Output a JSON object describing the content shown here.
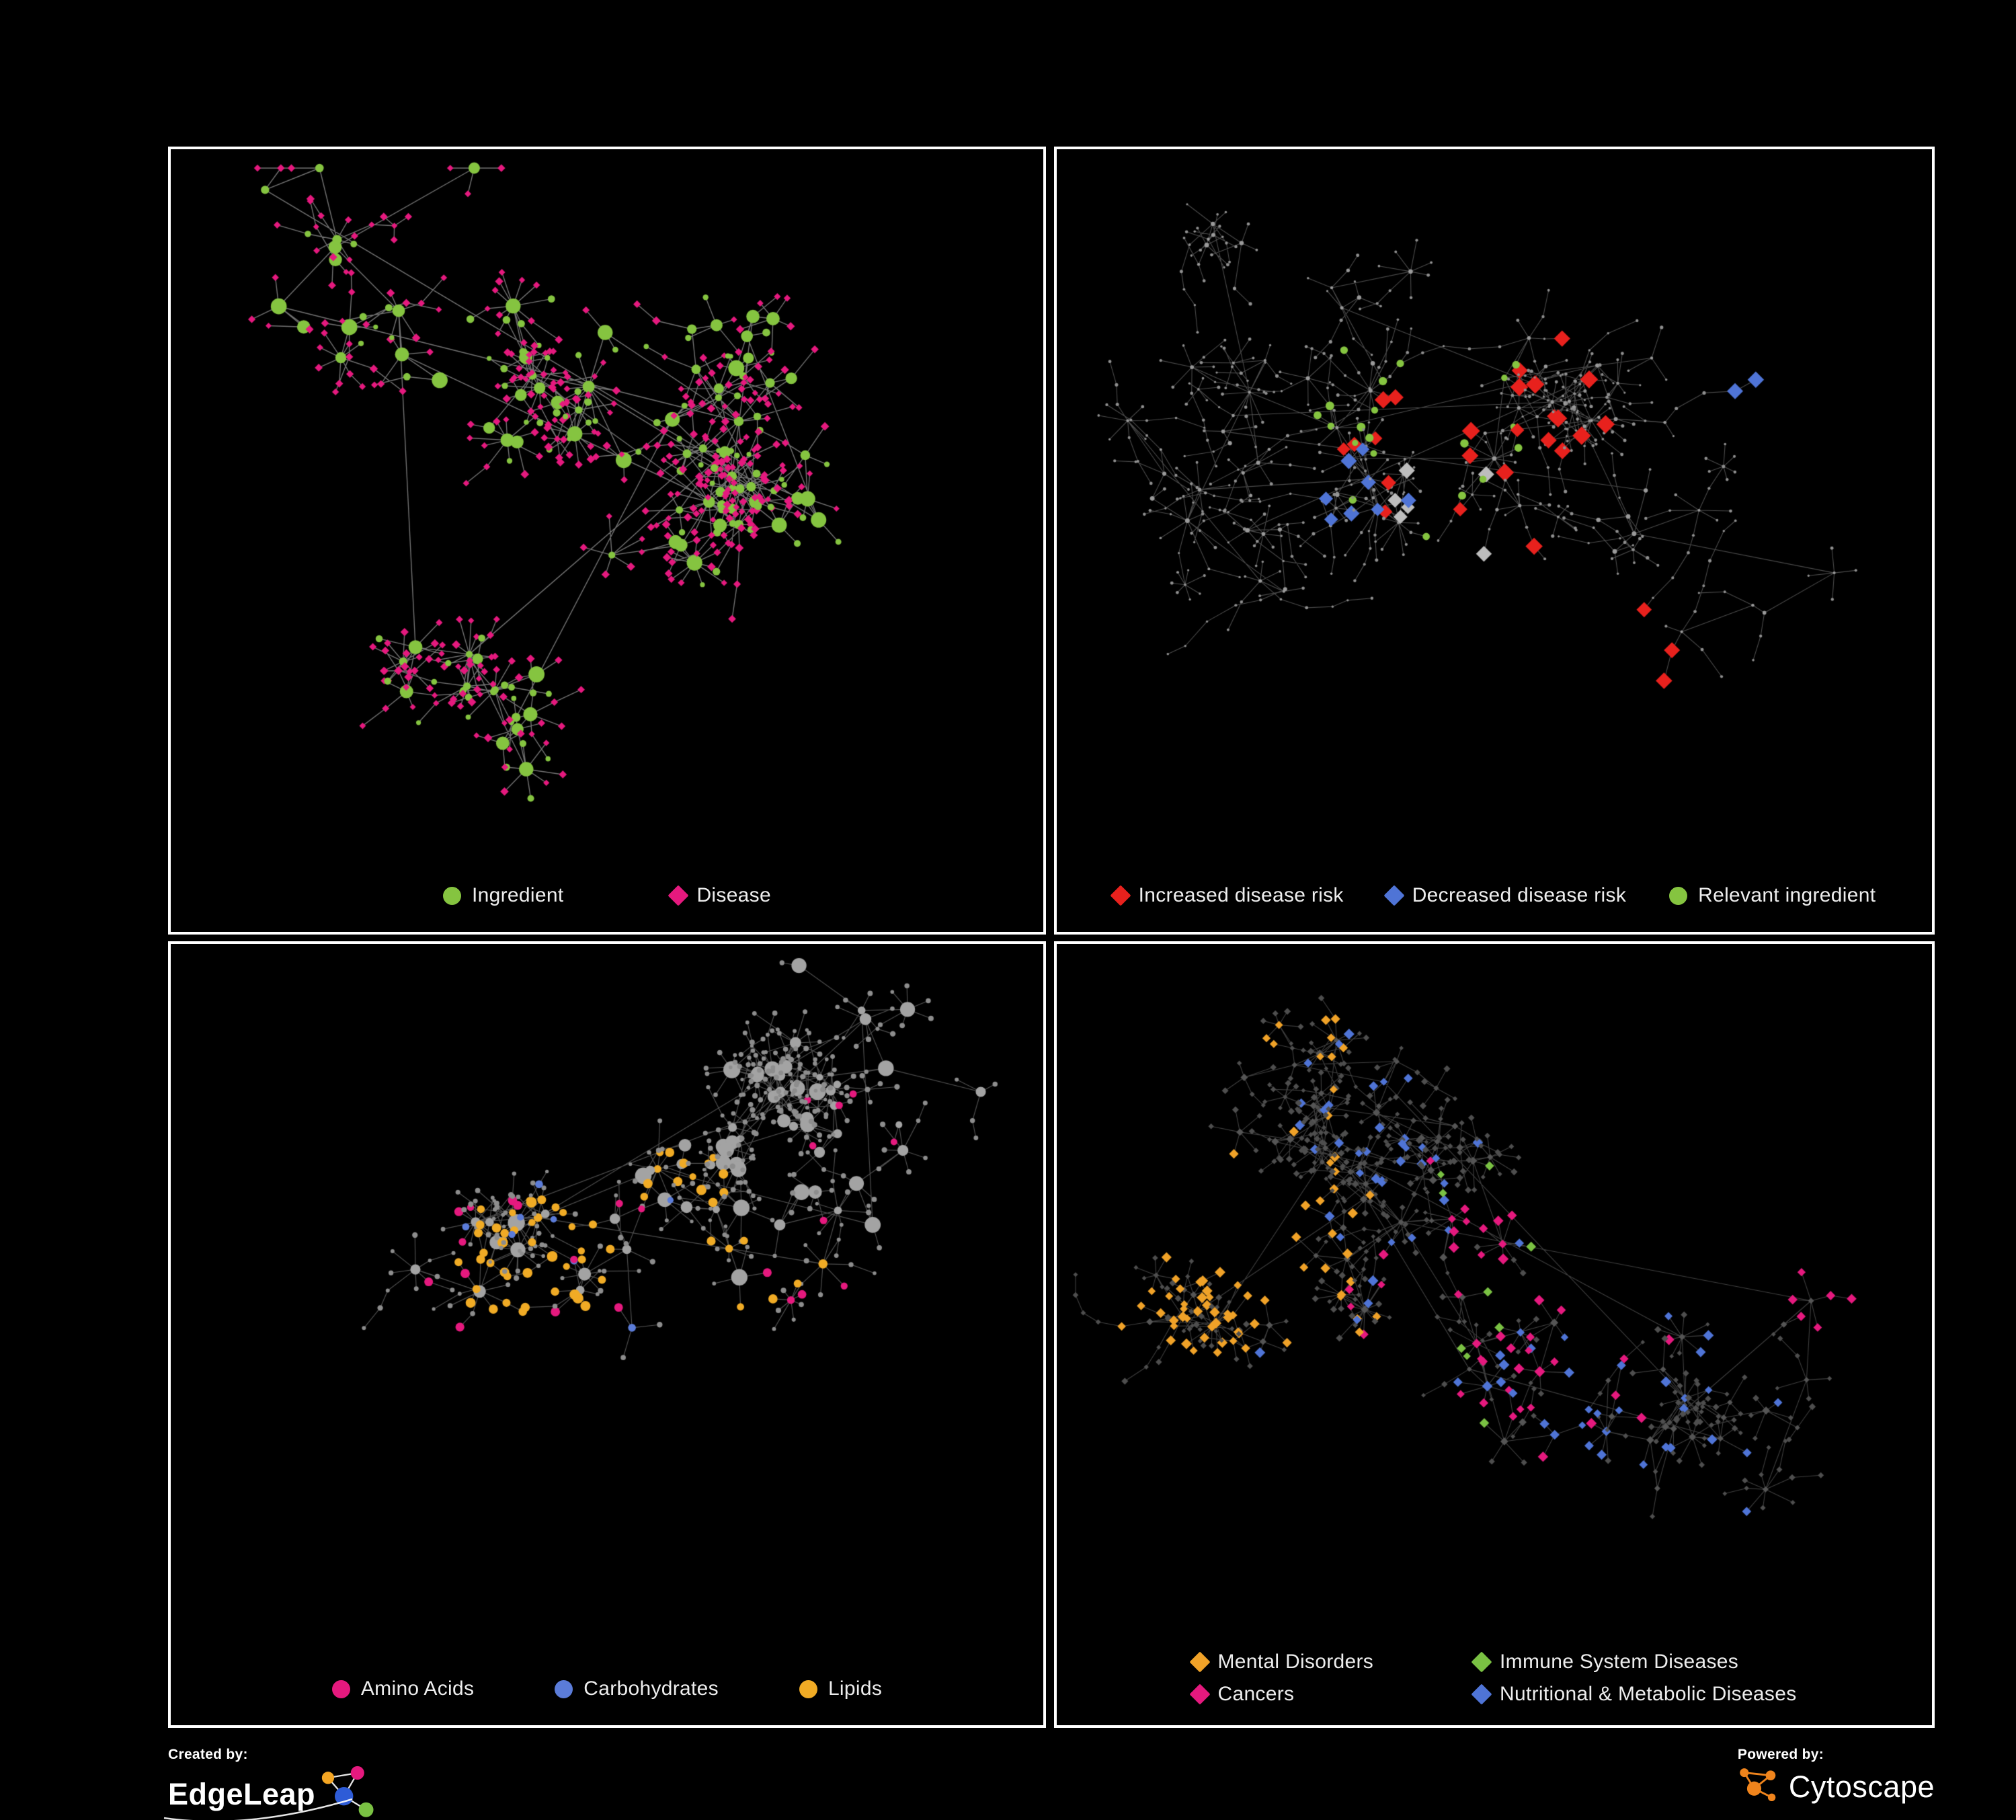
{
  "page": {
    "background": "#000000"
  },
  "panels": [
    {
      "name": "ingredient-disease-network",
      "legend": [
        {
          "label": "Ingredient",
          "color": "#85c440",
          "shape": "circle"
        },
        {
          "label": "Disease",
          "color": "#e5197e",
          "shape": "diamond"
        }
      ]
    },
    {
      "name": "disease-risk-network",
      "legend": [
        {
          "label": "Increased disease risk",
          "color": "#e8211d",
          "shape": "diamond"
        },
        {
          "label": "Decreased disease risk",
          "color": "#4f74d6",
          "shape": "diamond"
        },
        {
          "label": "Relevant ingredient",
          "color": "#85c440",
          "shape": "circle"
        }
      ]
    },
    {
      "name": "nutrient-class-network",
      "legend": [
        {
          "label": "Amino Acids",
          "color": "#e5197e",
          "shape": "circle"
        },
        {
          "label": "Carbohydrates",
          "color": "#5b7cd9",
          "shape": "circle"
        },
        {
          "label": "Lipids",
          "color": "#f0ab25",
          "shape": "circle"
        }
      ]
    },
    {
      "name": "disease-class-network",
      "legend": [
        {
          "label": "Mental Disorders",
          "color": "#f0a228",
          "shape": "diamond"
        },
        {
          "label": "Immune System Diseases",
          "color": "#7ac143",
          "shape": "diamond"
        },
        {
          "label": "Cancers",
          "color": "#e5197e",
          "shape": "diamond"
        },
        {
          "label": "Nutritional & Metabolic Diseases",
          "color": "#4f74d6",
          "shape": "diamond"
        }
      ]
    }
  ],
  "footer": {
    "created_by_label": "Created by:",
    "edgeleap": {
      "name": "EdgeLeap",
      "colors": [
        "#f5a623",
        "#e5197e",
        "#2e5cd7",
        "#7ac143"
      ]
    },
    "powered_by_label": "Powered by:",
    "cytoscape": {
      "name": "Cytoscape",
      "color": "#f0841c"
    }
  }
}
